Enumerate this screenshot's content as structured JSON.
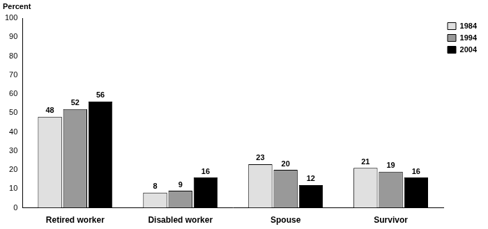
{
  "chart_data": {
    "type": "bar",
    "y_label": "Percent",
    "categories": [
      "Retired worker",
      "Disabled worker",
      "Spouse",
      "Survivor"
    ],
    "series": [
      {
        "name": "1984",
        "color": "#e0e0e0",
        "values": [
          48,
          8,
          23,
          21
        ]
      },
      {
        "name": "1994",
        "color": "#999999",
        "values": [
          52,
          9,
          20,
          19
        ]
      },
      {
        "name": "2004",
        "color": "#000000",
        "values": [
          56,
          16,
          12,
          16
        ]
      }
    ],
    "ylim": [
      0,
      100
    ],
    "yticks": [
      0,
      10,
      20,
      30,
      40,
      50,
      60,
      70,
      80,
      90,
      100
    ],
    "grid": false,
    "legend": "top-right",
    "data_labels": true
  }
}
